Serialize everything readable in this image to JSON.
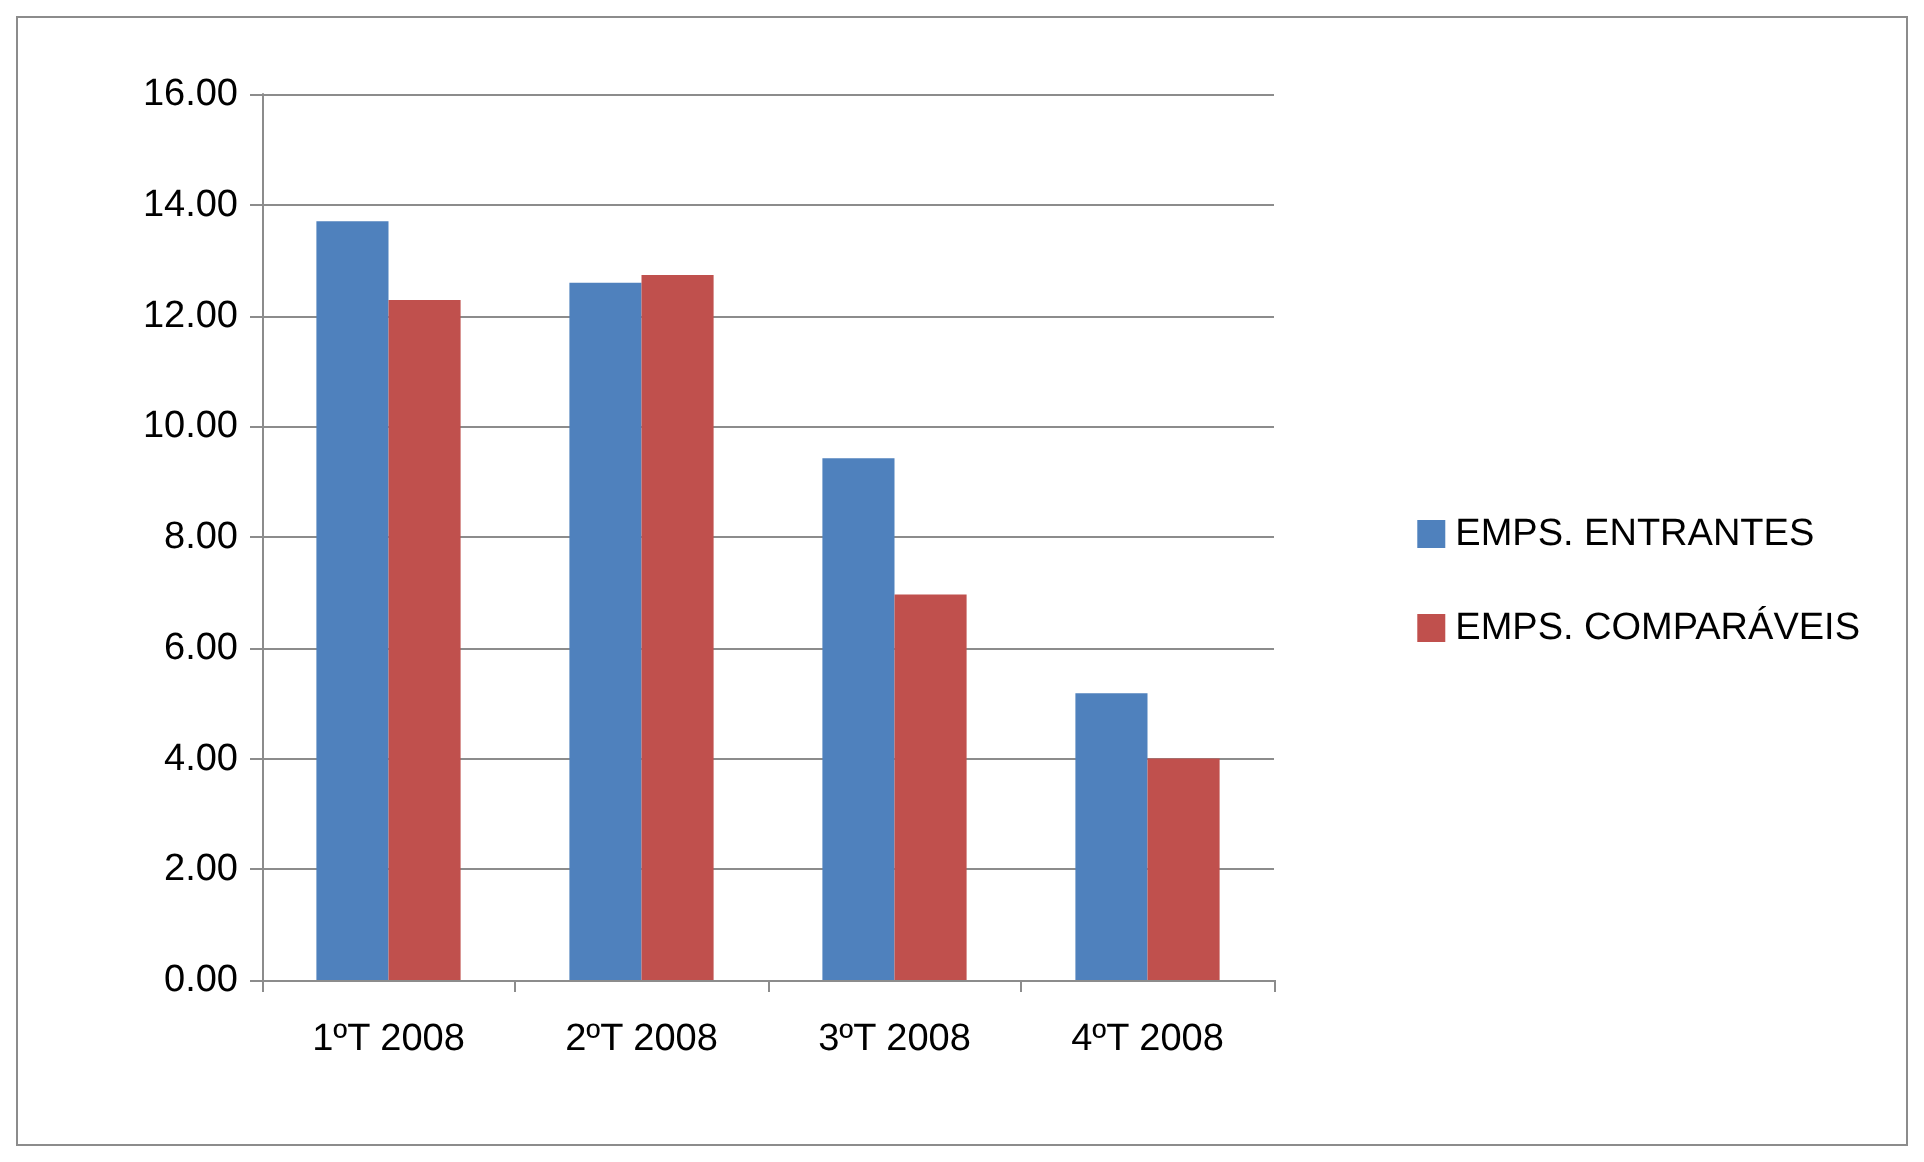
{
  "chart_data": {
    "type": "bar",
    "categories": [
      "1ºT 2008",
      "2ºT 2008",
      "3ºT 2008",
      "4ºT 2008"
    ],
    "series": [
      {
        "name": "EMPS. ENTRANTES",
        "color": "#4f81bd",
        "values": [
          13.7,
          12.59,
          9.42,
          5.18
        ]
      },
      {
        "name": "EMPS. COMPARÁVEIS",
        "color": "#c0504d",
        "values": [
          12.28,
          12.73,
          6.96,
          4.0
        ]
      }
    ],
    "ylim": [
      0,
      16
    ],
    "yticks": [
      {
        "value": 0,
        "label": "0.00"
      },
      {
        "value": 2,
        "label": "2.00"
      },
      {
        "value": 4,
        "label": "4.00"
      },
      {
        "value": 6,
        "label": "6.00"
      },
      {
        "value": 8,
        "label": "8.00"
      },
      {
        "value": 10,
        "label": "10.00"
      },
      {
        "value": 12,
        "label": "12.00"
      },
      {
        "value": 14,
        "label": "14.00"
      },
      {
        "value": 16,
        "label": "16.00"
      }
    ],
    "grid": "y",
    "legend": "right"
  }
}
